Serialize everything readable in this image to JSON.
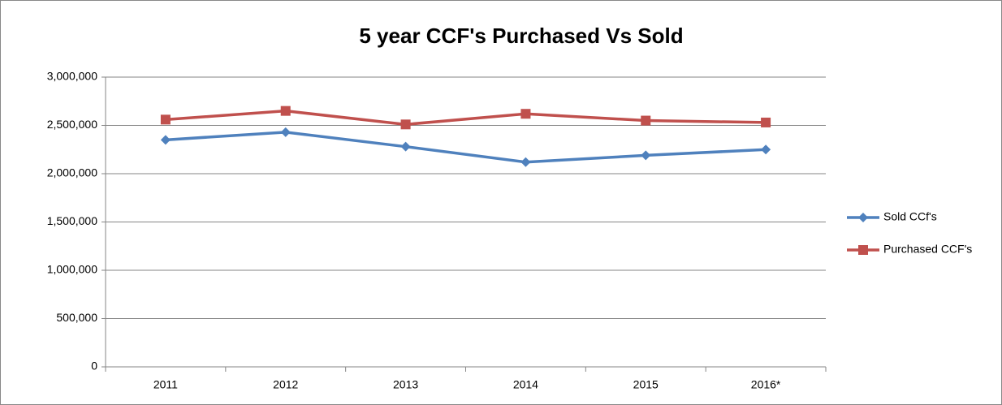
{
  "chart_data": {
    "type": "line",
    "title": "5 year CCF's Purchased Vs Sold",
    "categories": [
      "2011",
      "2012",
      "2013",
      "2014",
      "2015",
      "2016*"
    ],
    "series": [
      {
        "name": "Sold CCf's",
        "color": "#4f81bd",
        "marker": "diamond",
        "values": [
          2350000,
          2430000,
          2280000,
          2120000,
          2190000,
          2250000
        ]
      },
      {
        "name": "Purchased CCF's",
        "color": "#c0504d",
        "marker": "square",
        "values": [
          2560000,
          2650000,
          2510000,
          2620000,
          2550000,
          2530000
        ]
      }
    ],
    "ylim": [
      0,
      3000000
    ],
    "yticks": [
      0,
      {
        "value": 500000,
        "label": "500,000"
      },
      {
        "value": 1000000,
        "label": "1,000,000"
      },
      {
        "value": 1500000,
        "label": "1,500,000"
      },
      {
        "value": 2000000,
        "label": "2,000,000"
      },
      {
        "value": 2500000,
        "label": "2,500,000"
      },
      {
        "value": 3000000,
        "label": "3,000,000"
      }
    ],
    "grid": true,
    "legend": "right"
  }
}
